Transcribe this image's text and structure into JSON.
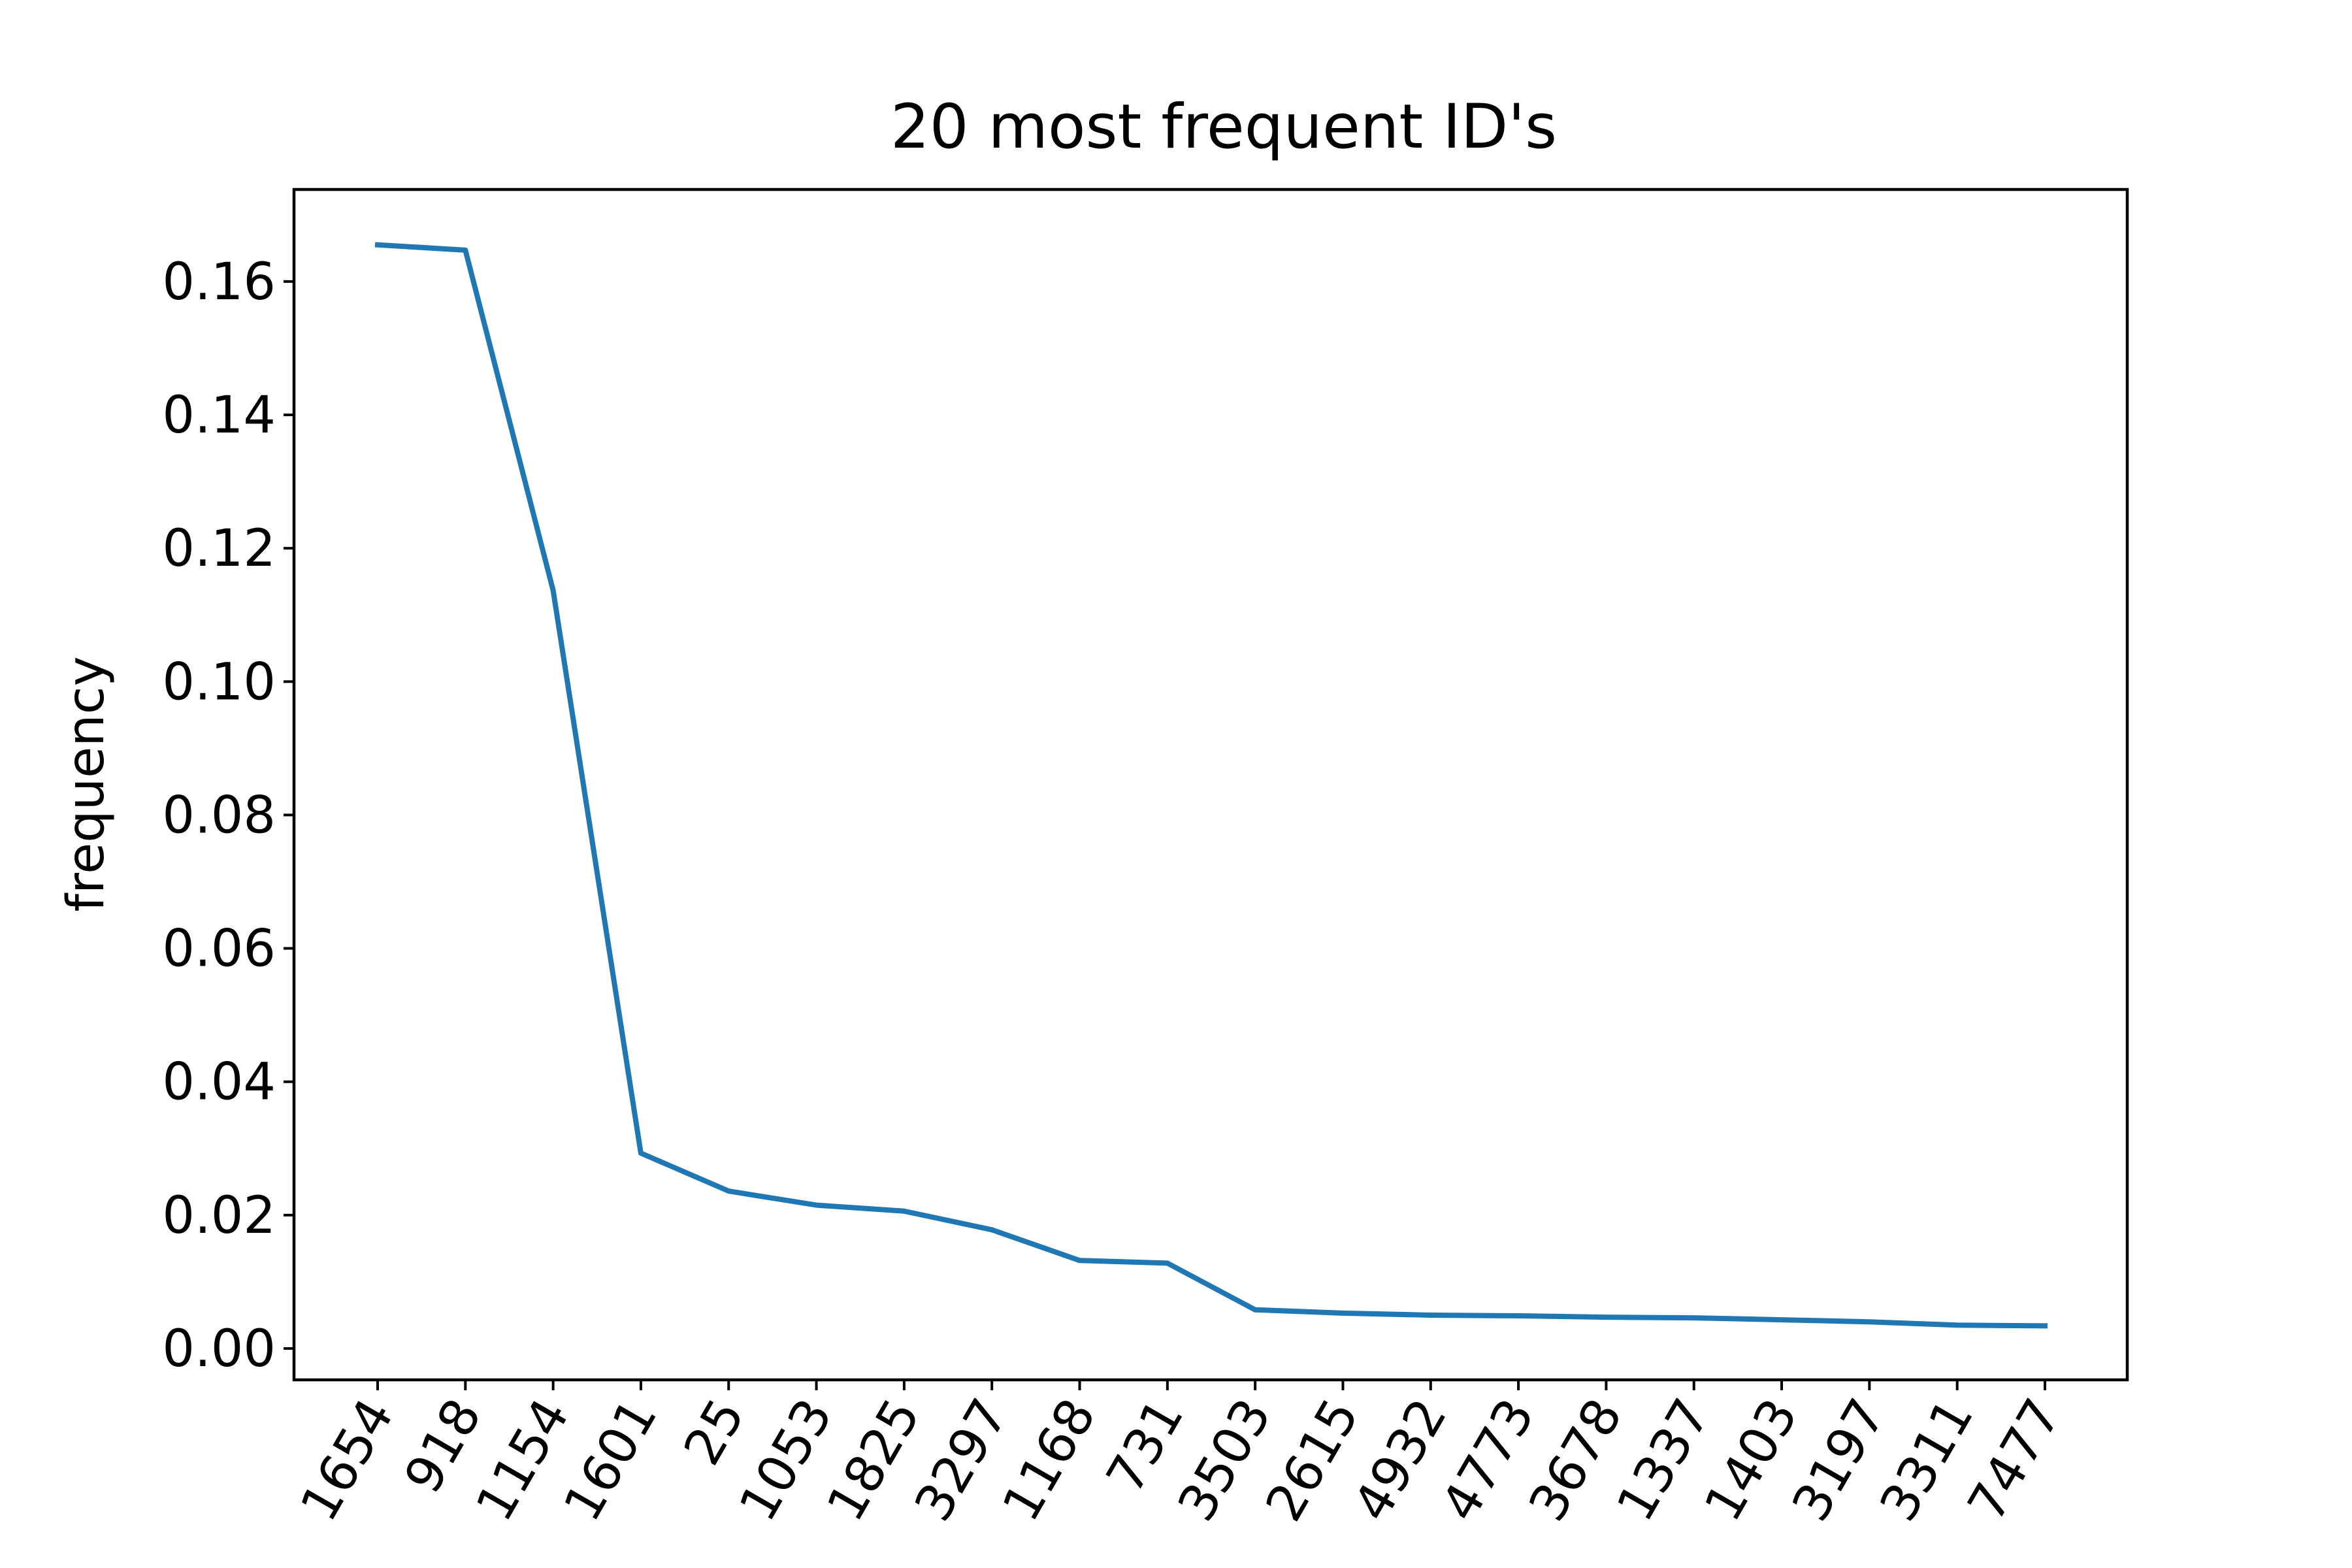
{
  "chart_data": {
    "type": "line",
    "title": "20 most frequent ID's",
    "xlabel": "",
    "ylabel": "frequency",
    "categories": [
      "1654",
      "918",
      "1154",
      "1601",
      "25",
      "1053",
      "1825",
      "3297",
      "1168",
      "731",
      "3503",
      "2615",
      "4932",
      "4773",
      "3678",
      "1337",
      "1403",
      "3197",
      "3311",
      "7477"
    ],
    "series": [
      {
        "values": [
          0.1655,
          0.1647,
          0.1137,
          0.0293,
          0.0236,
          0.0215,
          0.0206,
          0.0178,
          0.0132,
          0.0128,
          0.0058,
          0.0053,
          0.005,
          0.0049,
          0.0047,
          0.0046,
          0.0043,
          0.004,
          0.0035,
          0.0034
        ],
        "color": "#1f77b4"
      }
    ],
    "ylim": [
      -0.0047,
      0.1738
    ],
    "yticks": [
      0.0,
      0.02,
      0.04,
      0.06,
      0.08,
      0.1,
      0.12,
      0.14,
      0.16
    ],
    "ytick_labels": [
      "0.00",
      "0.02",
      "0.04",
      "0.06",
      "0.08",
      "0.10",
      "0.12",
      "0.14",
      "0.16"
    ],
    "grid": false,
    "legend": "none"
  }
}
